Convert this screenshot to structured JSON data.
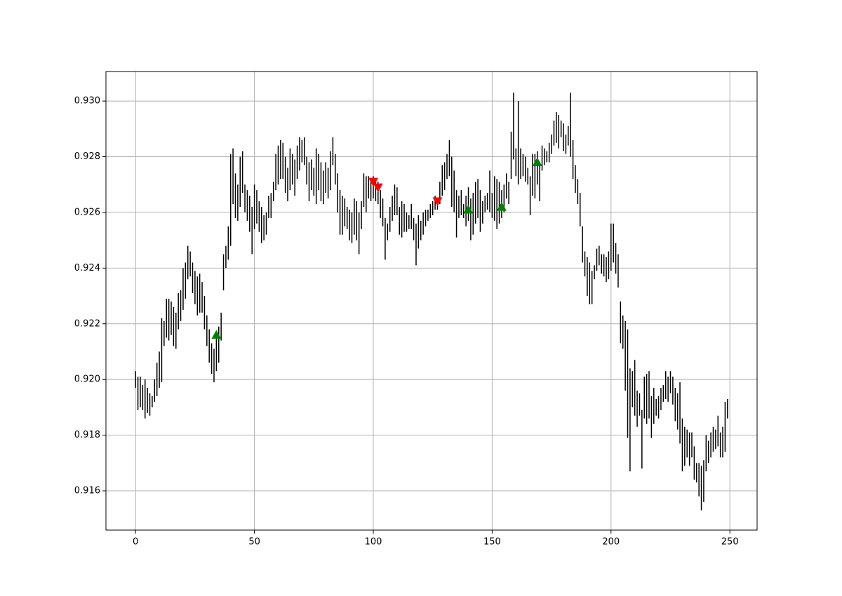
{
  "chart_data": {
    "type": "ohlc_bars",
    "color": "#000000",
    "grid": true,
    "xlim": [
      -12.45,
      261.45
    ],
    "ylim": [
      0.91459,
      0.93106
    ],
    "xticks": [
      0,
      50,
      100,
      150,
      200,
      250
    ],
    "yticks": [
      0.916,
      0.918,
      {
        "value": 0.92,
        "label": "0.920"
      },
      0.922,
      0.924,
      0.926,
      0.928,
      {
        "value": 0.93,
        "label": "0.930"
      }
    ],
    "x": [
      0,
      1,
      2,
      3,
      4,
      5,
      6,
      7,
      8,
      9,
      10,
      11,
      12,
      13,
      14,
      15,
      16,
      17,
      18,
      19,
      20,
      21,
      22,
      23,
      24,
      25,
      26,
      27,
      28,
      29,
      30,
      31,
      32,
      33,
      34,
      35,
      36,
      37,
      38,
      39,
      40,
      41,
      42,
      43,
      44,
      45,
      46,
      47,
      48,
      49,
      50,
      51,
      52,
      53,
      54,
      55,
      56,
      57,
      58,
      59,
      60,
      61,
      62,
      63,
      64,
      65,
      66,
      67,
      68,
      69,
      70,
      71,
      72,
      73,
      74,
      75,
      76,
      77,
      78,
      79,
      80,
      81,
      82,
      83,
      84,
      85,
      86,
      87,
      88,
      89,
      90,
      91,
      92,
      93,
      94,
      95,
      96,
      97,
      98,
      99,
      100,
      101,
      102,
      103,
      104,
      105,
      106,
      107,
      108,
      109,
      110,
      111,
      112,
      113,
      114,
      115,
      116,
      117,
      118,
      119,
      120,
      121,
      122,
      123,
      124,
      125,
      126,
      127,
      128,
      129,
      130,
      131,
      132,
      133,
      134,
      135,
      136,
      137,
      138,
      139,
      140,
      141,
      142,
      143,
      144,
      145,
      146,
      147,
      148,
      149,
      150,
      151,
      152,
      153,
      154,
      155,
      156,
      157,
      158,
      159,
      160,
      161,
      162,
      163,
      164,
      165,
      166,
      167,
      168,
      169,
      170,
      171,
      172,
      173,
      174,
      175,
      176,
      177,
      178,
      179,
      180,
      181,
      182,
      183,
      184,
      185,
      186,
      187,
      188,
      189,
      190,
      191,
      192,
      193,
      194,
      195,
      196,
      197,
      198,
      199,
      200,
      201,
      202,
      203,
      204,
      205,
      206,
      207,
      208,
      209,
      210,
      211,
      212,
      213,
      214,
      215,
      216,
      217,
      218,
      219,
      220,
      221,
      222,
      223,
      224,
      225,
      226,
      227,
      228,
      229,
      230,
      231,
      232,
      233,
      234,
      235,
      236,
      237,
      238,
      239,
      240,
      241,
      242,
      243,
      244,
      245,
      246,
      247,
      248,
      249
    ],
    "low": [
      0.9197,
      0.9189,
      0.919,
      0.9189,
      0.9186,
      0.9188,
      0.9187,
      0.919,
      0.9192,
      0.9194,
      0.9197,
      0.9199,
      0.9212,
      0.9215,
      0.9214,
      0.9216,
      0.9212,
      0.9211,
      0.9218,
      0.9221,
      0.9225,
      0.9229,
      0.9236,
      0.9237,
      0.9231,
      0.9227,
      0.9223,
      0.9224,
      0.9224,
      0.9218,
      0.9212,
      0.9206,
      0.9202,
      0.9199,
      0.9203,
      0.9206,
      0.9214,
      0.9232,
      0.924,
      0.9243,
      0.9248,
      0.9263,
      0.9258,
      0.9257,
      0.9262,
      0.9267,
      0.926,
      0.9257,
      0.9253,
      0.9245,
      0.9254,
      0.9256,
      0.9253,
      0.9249,
      0.925,
      0.9252,
      0.9258,
      0.9258,
      0.9264,
      0.9268,
      0.927,
      0.9272,
      0.9272,
      0.9267,
      0.9264,
      0.9268,
      0.927,
      0.9266,
      0.9272,
      0.9275,
      0.9278,
      0.9277,
      0.927,
      0.9264,
      0.9268,
      0.9266,
      0.9263,
      0.9268,
      0.9264,
      0.9263,
      0.9267,
      0.9265,
      0.9268,
      0.9277,
      0.927,
      0.926,
      0.9252,
      0.9252,
      0.9255,
      0.9254,
      0.925,
      0.9249,
      0.9252,
      0.925,
      0.9245,
      0.9254,
      0.9262,
      0.926,
      0.9265,
      0.9264,
      0.9265,
      0.9264,
      0.9263,
      0.9258,
      0.9255,
      0.9243,
      0.925,
      0.9253,
      0.9257,
      0.9259,
      0.9259,
      0.9252,
      0.9251,
      0.9253,
      0.9253,
      0.9254,
      0.9254,
      0.925,
      0.9241,
      0.9247,
      0.925,
      0.9252,
      0.9255,
      0.9257,
      0.9258,
      0.9259,
      0.9261,
      0.9261,
      0.9263,
      0.9266,
      0.9268,
      0.9272,
      0.9273,
      0.9262,
      0.926,
      0.9251,
      0.9258,
      0.9259,
      0.9258,
      0.9255,
      0.9257,
      0.925,
      0.9252,
      0.9256,
      0.9258,
      0.9253,
      0.9256,
      0.926,
      0.9261,
      0.926,
      0.9258,
      0.9257,
      0.9254,
      0.9256,
      0.9258,
      0.926,
      0.9265,
      0.9263,
      0.9272,
      0.9279,
      0.9273,
      0.927,
      0.9272,
      0.9273,
      0.9271,
      0.927,
      0.9259,
      0.9266,
      0.9265,
      0.927,
      0.9264,
      0.9275,
      0.9277,
      0.9278,
      0.9278,
      0.9281,
      0.9284,
      0.9285,
      0.9283,
      0.9287,
      0.9282,
      0.9281,
      0.9284,
      0.928,
      0.9272,
      0.9267,
      0.9263,
      0.9255,
      0.9242,
      0.9237,
      0.923,
      0.9227,
      0.9227,
      0.9236,
      0.9239,
      0.9241,
      0.9238,
      0.9237,
      0.9235,
      0.9236,
      0.9239,
      0.9242,
      0.9238,
      0.9233,
      0.9213,
      0.9211,
      0.9196,
      0.9179,
      0.9167,
      0.919,
      0.9187,
      0.9183,
      0.9187,
      0.9168,
      0.9186,
      0.9184,
      0.9186,
      0.9179,
      0.9184,
      0.9187,
      0.9186,
      0.9189,
      0.9192,
      0.9193,
      0.9192,
      0.9195,
      0.9191,
      0.9185,
      0.9182,
      0.9177,
      0.9167,
      0.9169,
      0.9172,
      0.9169,
      0.9172,
      0.9164,
      0.9163,
      0.9158,
      0.9153,
      0.9156,
      0.9167,
      0.917,
      0.9172,
      0.9174,
      0.9175,
      0.9176,
      0.9172,
      0.9172,
      0.9174,
      0.9186
    ],
    "high": [
      0.9203,
      0.9201,
      0.9201,
      0.9198,
      0.92,
      0.9197,
      0.9195,
      0.9194,
      0.92,
      0.9206,
      0.921,
      0.9222,
      0.9221,
      0.9229,
      0.9229,
      0.9228,
      0.9226,
      0.9224,
      0.9231,
      0.9232,
      0.924,
      0.9242,
      0.9248,
      0.9246,
      0.9242,
      0.9239,
      0.9237,
      0.9238,
      0.9235,
      0.923,
      0.9223,
      0.9218,
      0.9213,
      0.9211,
      0.9215,
      0.9219,
      0.9224,
      0.9245,
      0.9248,
      0.9255,
      0.9281,
      0.9283,
      0.9274,
      0.927,
      0.928,
      0.9282,
      0.927,
      0.9268,
      0.9266,
      0.9262,
      0.927,
      0.9268,
      0.9264,
      0.9262,
      0.9259,
      0.926,
      0.9266,
      0.9267,
      0.9271,
      0.9281,
      0.9284,
      0.9286,
      0.9285,
      0.928,
      0.9276,
      0.9283,
      0.9281,
      0.9279,
      0.9284,
      0.9287,
      0.9286,
      0.9287,
      0.928,
      0.9278,
      0.9279,
      0.9276,
      0.9283,
      0.9281,
      0.9278,
      0.9275,
      0.9278,
      0.9276,
      0.9282,
      0.9287,
      0.9281,
      0.9274,
      0.9268,
      0.9266,
      0.9265,
      0.9262,
      0.9261,
      0.926,
      0.9265,
      0.9264,
      0.926,
      0.9264,
      0.9274,
      0.9273,
      0.9273,
      0.9272,
      0.9273,
      0.9272,
      0.9271,
      0.9268,
      0.9265,
      0.9258,
      0.9256,
      0.9262,
      0.9266,
      0.927,
      0.9269,
      0.9262,
      0.9264,
      0.9263,
      0.926,
      0.9259,
      0.9263,
      0.9258,
      0.9256,
      0.9259,
      0.9257,
      0.926,
      0.9261,
      0.9261,
      0.9263,
      0.9264,
      0.9266,
      0.9264,
      0.9271,
      0.9277,
      0.9278,
      0.9281,
      0.9286,
      0.928,
      0.9275,
      0.9268,
      0.9266,
      0.9268,
      0.9263,
      0.9266,
      0.9269,
      0.9265,
      0.9267,
      0.9271,
      0.9272,
      0.9268,
      0.9264,
      0.9266,
      0.9267,
      0.9275,
      0.9267,
      0.9273,
      0.9272,
      0.9271,
      0.9268,
      0.927,
      0.9274,
      0.9271,
      0.9289,
      0.9303,
      0.9283,
      0.93,
      0.9283,
      0.9281,
      0.928,
      0.9276,
      0.9273,
      0.9281,
      0.9281,
      0.9282,
      0.9278,
      0.9284,
      0.9283,
      0.9282,
      0.9285,
      0.9288,
      0.9293,
      0.9296,
      0.9295,
      0.9293,
      0.9292,
      0.9288,
      0.9291,
      0.9303,
      0.9286,
      0.9277,
      0.9272,
      0.9267,
      0.9255,
      0.9246,
      0.9244,
      0.9242,
      0.9239,
      0.9241,
      0.9247,
      0.9248,
      0.9245,
      0.9245,
      0.9244,
      0.9246,
      0.9256,
      0.9256,
      0.9249,
      0.9245,
      0.9228,
      0.9223,
      0.9221,
      0.9218,
      0.9204,
      0.9203,
      0.9207,
      0.9196,
      0.9195,
      0.9189,
      0.9201,
      0.9202,
      0.9203,
      0.9194,
      0.9197,
      0.9193,
      0.9194,
      0.9197,
      0.9198,
      0.9203,
      0.9201,
      0.9203,
      0.9201,
      0.9197,
      0.9195,
      0.9199,
      0.9186,
      0.9183,
      0.9182,
      0.9181,
      0.9181,
      0.9176,
      0.917,
      0.917,
      0.9169,
      0.9171,
      0.918,
      0.9178,
      0.9181,
      0.9183,
      0.9182,
      0.9187,
      0.9181,
      0.9183,
      0.9192,
      0.9193
    ],
    "signals": [
      {
        "marker": "triangle-up",
        "color": "#008000",
        "x": [
          34,
          140,
          154,
          169
        ],
        "values": [
          0.9216,
          0.9261,
          0.9262,
          0.9278
        ]
      },
      {
        "marker": "triangle-down",
        "color": "#ff0000",
        "x": [
          100,
          102,
          127
        ],
        "values": [
          0.9271,
          0.9269,
          0.9264
        ]
      }
    ]
  }
}
